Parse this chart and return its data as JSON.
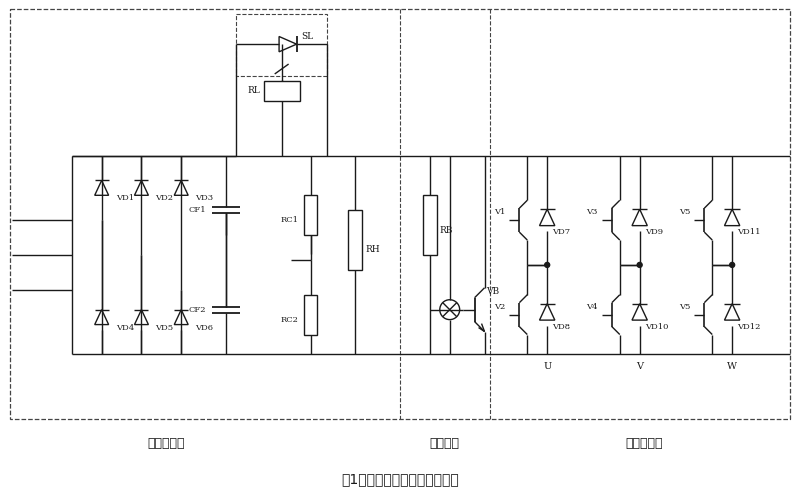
{
  "title": "图1：交一直一交变频器主电路",
  "subtitle_left": "交一直变换",
  "subtitle_mid": "能耗电路",
  "subtitle_right": "直一交变换",
  "bg_color": "#ffffff",
  "line_color": "#1a1a1a",
  "dashed_color": "#444444",
  "text_color": "#1a1a1a",
  "figsize": [
    8.0,
    5.0
  ],
  "dpi": 100
}
